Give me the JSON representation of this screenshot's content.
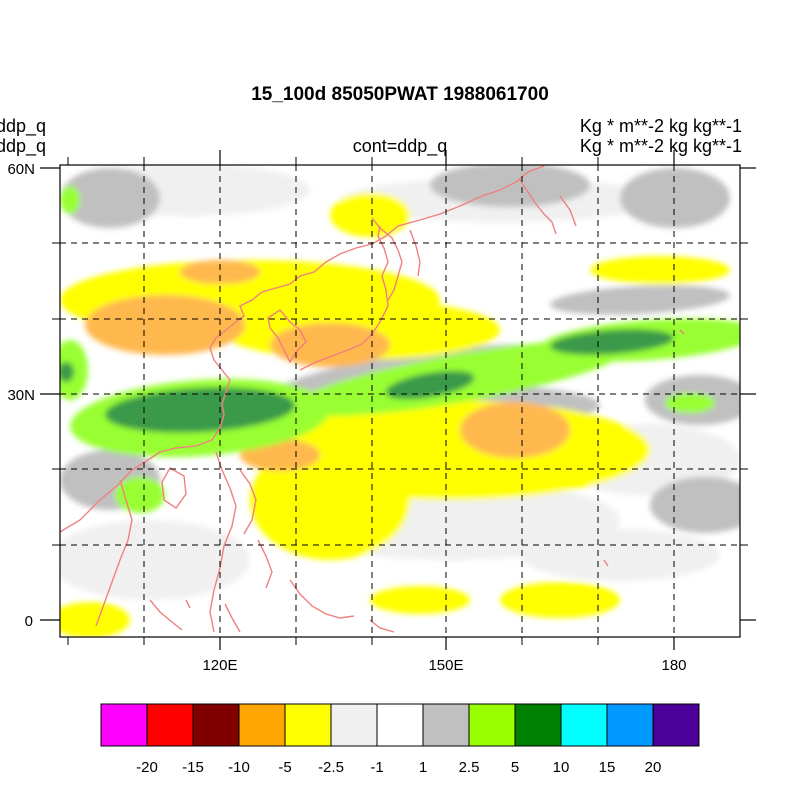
{
  "title": "15_100d 85050PWAT  1988061700",
  "left_labels": [
    "ddp_q",
    "ddp_q"
  ],
  "right_labels": [
    "Kg  * m**-2 kg kg**-1",
    "Kg  * m**-2 kg kg**-1"
  ],
  "center_label": "cont=ddp_q",
  "y_ticks": [
    "60N",
    "30N",
    "0"
  ],
  "x_ticks": [
    "120E",
    "150E",
    "180"
  ],
  "colorbar": {
    "colors": [
      "#ff00ff",
      "#ff0000",
      "#800000",
      "#ffa500",
      "#ffff00",
      "#f0f0f0",
      "#ffffff",
      "#c0c0c0",
      "#99ff00",
      "#008000",
      "#00ffff",
      "#0099ff",
      "#4b0099"
    ],
    "labels": [
      "-20",
      "-15",
      "-10",
      "-5",
      "-2.5",
      "-1",
      "1",
      "2.5",
      "5",
      "10",
      "15",
      "20"
    ]
  }
}
